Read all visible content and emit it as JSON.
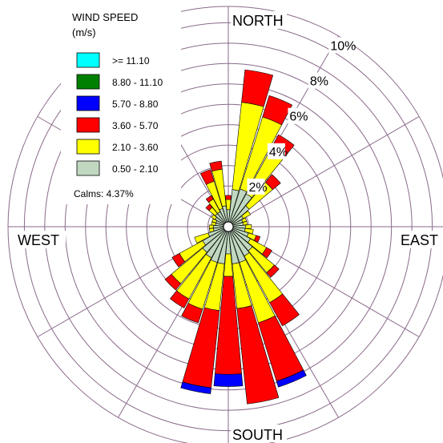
{
  "chart_data": {
    "type": "wind-rose",
    "legend_title_lines": [
      "WIND SPEED",
      "(m/s)"
    ],
    "calms_label": "Calms: 4.37%",
    "cardinal_labels": {
      "north": "NORTH",
      "south": "SOUTH",
      "east": "EAST",
      "west": "WEST"
    },
    "ring_labels": [
      "2%",
      "4%",
      "6%",
      "8%",
      "10%"
    ],
    "ring_values": [
      2,
      4,
      6,
      8,
      10
    ],
    "radial_max": 10.8,
    "bins": [
      {
        "label": ">= 11.10",
        "color": "#00ffff"
      },
      {
        "label": "8.80 - 11.10",
        "color": "#008000"
      },
      {
        "label": "5.70 - 8.80",
        "color": "#0000ff"
      },
      {
        "label": "3.60 - 5.70",
        "color": "#ff0000"
      },
      {
        "label": "2.10 - 3.60",
        "color": "#ffff00"
      },
      {
        "label": "0.50 - 2.10",
        "color": "#c0d8c0"
      }
    ],
    "stack_order": [
      "0.50 - 2.10",
      "2.10 - 3.60",
      "3.60 - 5.70",
      "5.70 - 8.80",
      "8.80 - 11.10",
      ">= 11.10"
    ],
    "sectors": [
      {
        "dir": 0,
        "values": [
          0.6,
          0.5,
          0.2,
          0,
          0,
          0
        ]
      },
      {
        "dir": 11.25,
        "values": [
          1.6,
          4.3,
          1.6,
          0,
          0,
          0
        ]
      },
      {
        "dir": 22.5,
        "values": [
          1.7,
          3.7,
          1.1,
          0,
          0,
          0
        ]
      },
      {
        "dir": 33.75,
        "values": [
          1.6,
          2.5,
          0.8,
          0,
          0,
          0
        ]
      },
      {
        "dir": 45,
        "values": [
          1.1,
          1.5,
          0.5,
          0,
          0,
          0
        ]
      },
      {
        "dir": 56.25,
        "values": [
          0.6,
          0.4,
          0,
          0,
          0,
          0
        ]
      },
      {
        "dir": 67.5,
        "values": [
          0.5,
          0.2,
          0,
          0,
          0,
          0
        ]
      },
      {
        "dir": 78.75,
        "values": [
          0.5,
          0.2,
          0,
          0,
          0,
          0
        ]
      },
      {
        "dir": 90,
        "values": [
          0.6,
          0.3,
          0,
          0,
          0,
          0
        ]
      },
      {
        "dir": 101.25,
        "values": [
          0.6,
          0.4,
          0,
          0,
          0,
          0
        ]
      },
      {
        "dir": 112.5,
        "values": [
          0.8,
          0.4,
          0.2,
          0,
          0,
          0
        ]
      },
      {
        "dir": 123.75,
        "values": [
          1.0,
          0.9,
          0.3,
          0,
          0,
          0
        ]
      },
      {
        "dir": 135,
        "values": [
          1.3,
          1.4,
          0.3,
          0,
          0,
          0
        ]
      },
      {
        "dir": 146.25,
        "values": [
          1.4,
          2.6,
          1.3,
          0,
          0,
          0
        ]
      },
      {
        "dir": 157.5,
        "values": [
          1.6,
          3.1,
          3.0,
          0.3,
          0,
          0
        ]
      },
      {
        "dir": 168.75,
        "values": [
          1.6,
          2.2,
          4.7,
          0,
          0,
          0
        ]
      },
      {
        "dir": 180,
        "values": [
          1.1,
          1.1,
          4.8,
          0.6,
          0,
          0
        ]
      },
      {
        "dir": 191.25,
        "values": [
          1.6,
          2.3,
          3.8,
          0.3,
          0,
          0
        ]
      },
      {
        "dir": 202.5,
        "values": [
          1.6,
          2.4,
          0.7,
          0,
          0,
          0
        ]
      },
      {
        "dir": 213.75,
        "values": [
          1.5,
          2.3,
          0.5,
          0,
          0,
          0
        ]
      },
      {
        "dir": 225,
        "values": [
          1.4,
          2.0,
          0.4,
          0,
          0,
          0
        ]
      },
      {
        "dir": 236.25,
        "values": [
          1.2,
          1.3,
          0.4,
          0,
          0,
          0
        ]
      },
      {
        "dir": 247.5,
        "values": [
          0.8,
          0.7,
          0,
          0,
          0,
          0
        ]
      },
      {
        "dir": 258.75,
        "values": [
          0.5,
          0.2,
          0,
          0,
          0,
          0
        ]
      },
      {
        "dir": 270,
        "values": [
          0.5,
          0.2,
          0,
          0,
          0,
          0
        ]
      },
      {
        "dir": 281.25,
        "values": [
          0.4,
          0.2,
          0,
          0,
          0,
          0
        ]
      },
      {
        "dir": 292.5,
        "values": [
          0.4,
          0.2,
          0,
          0,
          0,
          0
        ]
      },
      {
        "dir": 303.75,
        "values": [
          0.5,
          0.2,
          0,
          0,
          0,
          0
        ]
      },
      {
        "dir": 315,
        "values": [
          0.6,
          0.4,
          0.2,
          0,
          0,
          0
        ]
      },
      {
        "dir": 326.25,
        "values": [
          0.6,
          0.7,
          0.2,
          0,
          0,
          0
        ]
      },
      {
        "dir": 337.5,
        "values": [
          0.7,
          1.4,
          0.6,
          0,
          0,
          0
        ]
      },
      {
        "dir": 348.75,
        "values": [
          0.8,
          1.8,
          0.4,
          0,
          0,
          0
        ]
      }
    ],
    "grid": true
  }
}
